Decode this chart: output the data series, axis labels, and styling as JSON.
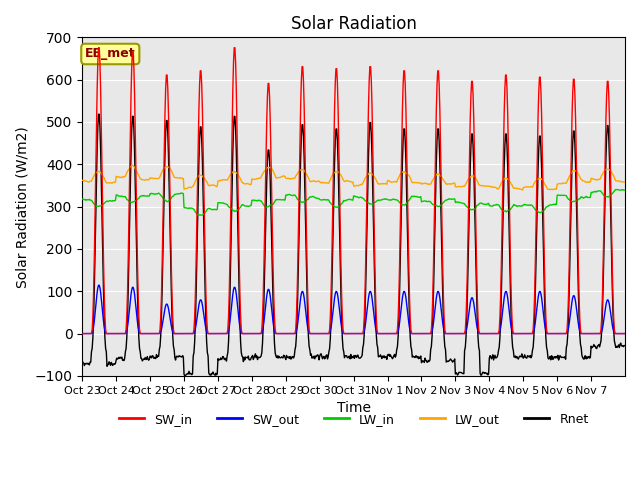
{
  "title": "Solar Radiation",
  "xlabel": "Time",
  "ylabel": "Solar Radiation (W/m2)",
  "ylim": [
    -100,
    700
  ],
  "annotation": "EE_met",
  "x_tick_labels": [
    "Oct 23",
    "Oct 24",
    "Oct 25",
    "Oct 26",
    "Oct 27",
    "Oct 28",
    "Oct 29",
    "Oct 30",
    "Oct 31",
    "Nov 1",
    "Nov 2",
    "Nov 3",
    "Nov 4",
    "Nov 5",
    "Nov 6",
    "Nov 7"
  ],
  "series": {
    "SW_in": {
      "color": "#FF0000",
      "lw": 1.0
    },
    "SW_out": {
      "color": "#0000FF",
      "lw": 1.0
    },
    "LW_in": {
      "color": "#00CC00",
      "lw": 1.0
    },
    "LW_out": {
      "color": "#FFA500",
      "lw": 1.0
    },
    "Rnet": {
      "color": "#000000",
      "lw": 1.0
    }
  },
  "n_days": 16,
  "hours_per_day": 24,
  "dt_hours": 0.5,
  "SW_in_peaks": [
    680,
    670,
    615,
    625,
    680,
    595,
    635,
    630,
    635,
    625,
    625,
    600,
    615,
    610,
    605,
    600
  ],
  "SW_out_peaks": [
    115,
    110,
    70,
    80,
    110,
    105,
    100,
    100,
    100,
    100,
    100,
    85,
    100,
    100,
    90,
    80
  ],
  "LW_in_base": [
    315,
    325,
    330,
    295,
    305,
    315,
    325,
    315,
    320,
    320,
    315,
    308,
    303,
    303,
    325,
    338
  ],
  "LW_out_base": [
    358,
    368,
    368,
    348,
    358,
    368,
    363,
    358,
    353,
    358,
    353,
    348,
    343,
    343,
    358,
    363
  ],
  "Rnet_night": [
    -70,
    -60,
    -55,
    -95,
    -60,
    -55,
    -55,
    -55,
    -55,
    -55,
    -65,
    -95,
    -55,
    -55,
    -55,
    -30
  ],
  "background_color": "#E8E8E8",
  "grid_color": "#FFFFFF"
}
